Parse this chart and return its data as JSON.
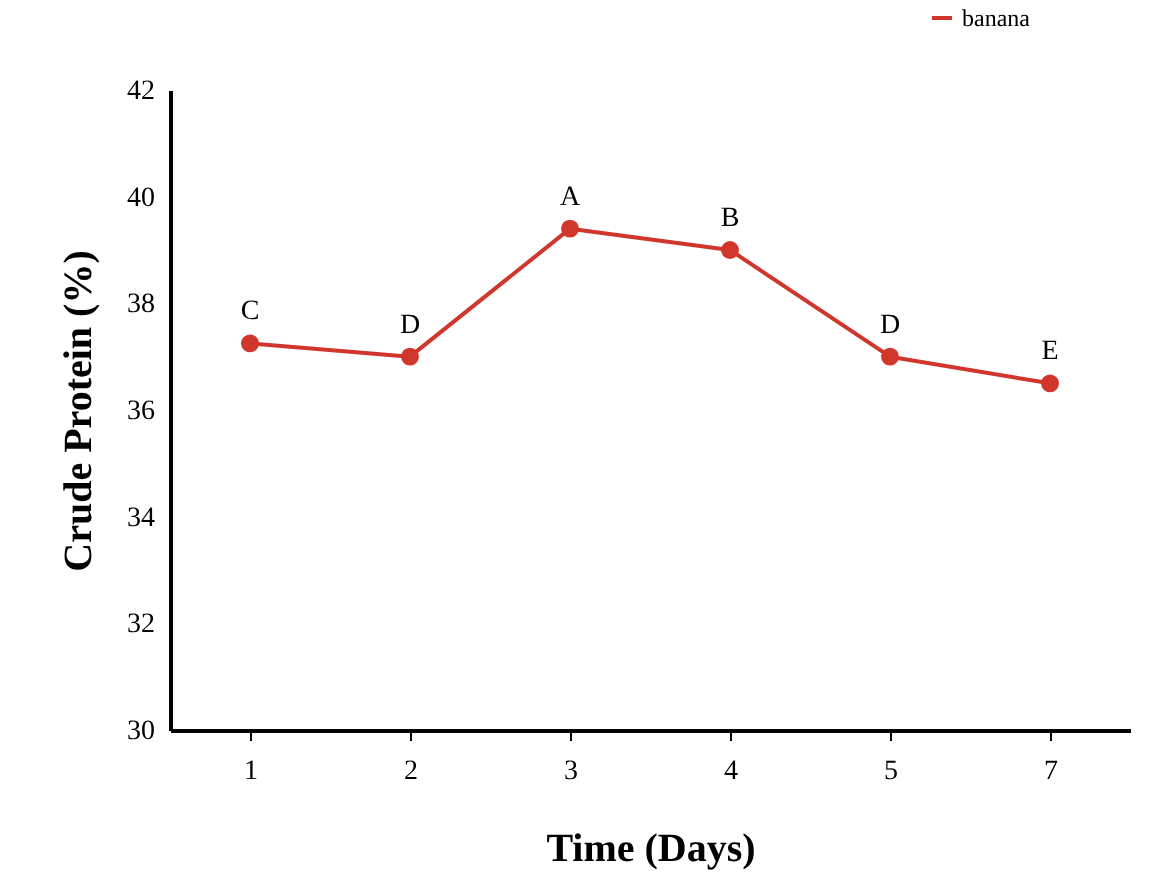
{
  "chart_data": {
    "type": "line",
    "xlabel": "Time (Days)",
    "ylabel": "Crude Protein (%)",
    "categories": [
      "1",
      "2",
      "3",
      "4",
      "5",
      "7"
    ],
    "series": [
      {
        "name": "banana",
        "color": "#d0362c",
        "values": [
          37.25,
          37.0,
          39.4,
          39.0,
          37.0,
          36.5
        ]
      }
    ],
    "ylim": [
      30,
      42
    ],
    "yticks": [
      30,
      32,
      34,
      36,
      38,
      40,
      42
    ],
    "annotations": [
      {
        "text": "C",
        "x": "1",
        "y": 37.25
      },
      {
        "text": "D",
        "x": "2",
        "y": 37.0
      },
      {
        "text": "A",
        "x": "3",
        "y": 39.4
      },
      {
        "text": "B",
        "x": "4",
        "y": 39.0
      },
      {
        "text": "D",
        "x": "5",
        "y": 37.0
      },
      {
        "text": "E",
        "x": "7",
        "y": 36.5
      }
    ],
    "legend": "top right",
    "marker": "circle",
    "line_style": "solid",
    "grid": false
  }
}
